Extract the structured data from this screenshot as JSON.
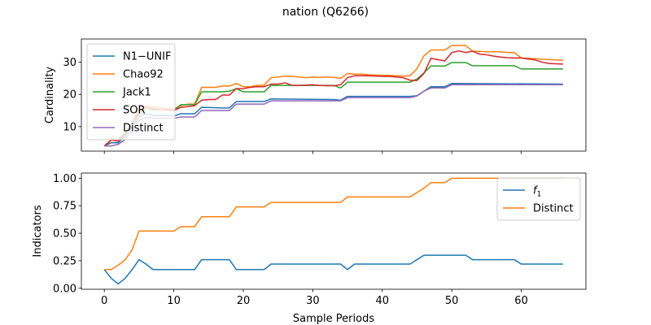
{
  "figure": {
    "title": "nation (Q6266)"
  },
  "chart_data": [
    {
      "type": "line",
      "ylabel": "Cardinality",
      "xlim": [
        -3.3,
        69.3
      ],
      "ylim": [
        2.4,
        37.2
      ],
      "yticks": [
        10,
        20,
        30
      ],
      "xticks": [
        0,
        10,
        20,
        30,
        40,
        50,
        60
      ],
      "show_xtick_labels": false,
      "legend_position": "top-left",
      "series": [
        {
          "name": "N1−UNIF",
          "color": "#1f77b4",
          "x": [
            0,
            1,
            2,
            3,
            4,
            5,
            6,
            7,
            8,
            9,
            10,
            11,
            12,
            13,
            14,
            17,
            18,
            19,
            23,
            24,
            33,
            34,
            35,
            44,
            45,
            46,
            47,
            48,
            49,
            50,
            66
          ],
          "y": [
            4,
            5,
            5,
            7,
            10,
            13,
            14,
            13.5,
            13.5,
            13.5,
            13.3,
            14,
            14,
            14,
            16,
            15.8,
            15.8,
            17.8,
            17.8,
            18.6,
            18.4,
            18.2,
            19.4,
            19.4,
            19.6,
            21,
            22.4,
            22.4,
            22.4,
            23.4,
            23.2
          ]
        },
        {
          "name": "Chao92",
          "color": "#ff7f0e",
          "x": [
            0,
            1,
            2,
            3,
            4,
            5,
            6,
            7,
            8,
            9,
            10,
            11,
            12,
            13,
            14,
            15,
            16,
            17,
            18,
            19,
            20,
            21,
            22,
            23,
            24,
            25,
            26,
            27,
            28,
            29,
            30,
            31,
            32,
            33,
            34,
            35,
            36,
            37,
            38,
            39,
            40,
            41,
            42,
            43,
            44,
            45,
            46,
            47,
            48,
            49,
            50,
            51,
            52,
            53,
            54,
            55,
            56,
            57,
            58,
            59,
            60,
            61,
            62,
            63,
            64,
            65,
            66
          ],
          "y": [
            4,
            6,
            5.5,
            8,
            11,
            16,
            16.5,
            16,
            16,
            15.5,
            15.5,
            16.5,
            17,
            17,
            22.2,
            22.2,
            22.2,
            22.6,
            22.6,
            23.4,
            22.4,
            22.4,
            22.8,
            22.9,
            25.2,
            25.4,
            25.7,
            25.6,
            25.4,
            25.2,
            25.4,
            25.3,
            25.4,
            25.3,
            25,
            26.5,
            26.3,
            26.3,
            26.1,
            26,
            25.9,
            25.9,
            25.8,
            25.7,
            25.8,
            28,
            32,
            33.8,
            33.8,
            33.8,
            35.2,
            35.2,
            35.2,
            33.4,
            33.4,
            33.2,
            33.3,
            33.2,
            33,
            33,
            31.3,
            31.2,
            31.1,
            30.9,
            30.8,
            30.7,
            30.6
          ]
        },
        {
          "name": "Jack1",
          "color": "#2ca02c",
          "x": [
            0,
            1,
            2,
            3,
            4,
            5,
            6,
            7,
            8,
            9,
            10,
            11,
            12,
            13,
            14,
            15,
            16,
            17,
            18,
            19,
            20,
            21,
            22,
            23,
            24,
            33,
            34,
            35,
            44,
            45,
            46,
            47,
            48,
            49,
            50,
            51,
            52,
            53,
            59,
            60,
            66
          ],
          "y": [
            4,
            5.8,
            6,
            8.2,
            11,
            13.9,
            15.8,
            15.2,
            15.2,
            15.2,
            15,
            16.8,
            16.8,
            16.8,
            20.8,
            20.8,
            20.8,
            20.8,
            21,
            21.8,
            20.8,
            20.8,
            20.8,
            20.8,
            22.8,
            22.8,
            22,
            23.8,
            23.8,
            24.8,
            26.7,
            28.8,
            28.8,
            28.8,
            29.9,
            29.9,
            29.9,
            28.9,
            28.9,
            27.9,
            27.9
          ]
        },
        {
          "name": "SOR",
          "color": "#d62728",
          "x": [
            0,
            1,
            2,
            3,
            4,
            5,
            6,
            7,
            8,
            9,
            10,
            11,
            12,
            13,
            14,
            15,
            16,
            17,
            18,
            19,
            20,
            21,
            22,
            23,
            24,
            25,
            26,
            27,
            28,
            29,
            30,
            31,
            32,
            33,
            34,
            35,
            36,
            37,
            38,
            39,
            40,
            41,
            42,
            43,
            44,
            45,
            46,
            47,
            48,
            49,
            50,
            51,
            52,
            53,
            54,
            55,
            56,
            57,
            58,
            59,
            60,
            61,
            62,
            63,
            64,
            65,
            66
          ],
          "y": [
            4,
            5.8,
            5.5,
            7.5,
            10.5,
            15,
            16,
            15.5,
            15.2,
            15.2,
            15,
            16,
            16.2,
            16.5,
            18.2,
            18.4,
            18.4,
            19.8,
            19.8,
            21.8,
            21.8,
            22.2,
            22.4,
            22.4,
            23.2,
            23.2,
            23.6,
            22.8,
            22.8,
            22.9,
            23,
            22.8,
            22.7,
            22.7,
            23,
            25.2,
            25.8,
            25.8,
            25.8,
            25.7,
            25.6,
            25.6,
            25.4,
            25.2,
            24.4,
            24.3,
            26.5,
            31.2,
            30.8,
            30.4,
            33,
            33.5,
            33,
            33.4,
            32.5,
            32.3,
            31.9,
            31.6,
            31.4,
            31.3,
            31.3,
            31,
            30.7,
            30,
            29.6,
            29.5,
            29.4
          ]
        },
        {
          "name": "Distinct",
          "color": "#9467bd",
          "x": [
            0,
            1,
            2,
            3,
            4,
            5,
            6,
            7,
            8,
            9,
            10,
            11,
            12,
            13,
            14,
            15,
            16,
            17,
            18,
            19,
            23,
            24,
            33,
            34,
            35,
            44,
            45,
            46,
            47,
            48,
            49,
            50,
            66
          ],
          "y": [
            4,
            4,
            4.5,
            6,
            9,
            12,
            12.8,
            12.6,
            12.6,
            12.6,
            12.6,
            13,
            13,
            13,
            15,
            15,
            15,
            15,
            15,
            17,
            17,
            18,
            18,
            18,
            19,
            19,
            19.5,
            21,
            22,
            22,
            22,
            23,
            23
          ]
        }
      ]
    },
    {
      "type": "line",
      "ylabel": "Indicators",
      "xlabel": "Sample Periods",
      "xlim": [
        -3.3,
        69.3
      ],
      "ylim": [
        -0.009,
        1.047
      ],
      "yticks": [
        0.0,
        0.25,
        0.5,
        0.75,
        1.0
      ],
      "ytick_labels": [
        "0.00",
        "0.25",
        "0.50",
        "0.75",
        "1.00"
      ],
      "xticks": [
        0,
        10,
        20,
        30,
        40,
        50,
        60
      ],
      "xtick_labels": [
        "0",
        "10",
        "20",
        "30",
        "40",
        "50",
        "60"
      ],
      "legend_position": "top-right",
      "series": [
        {
          "name": "f_1",
          "color": "#1f77b4",
          "x": [
            0,
            1,
            2,
            3,
            4,
            5,
            6,
            7,
            13,
            14,
            18,
            19,
            23,
            24,
            34,
            35,
            36,
            44,
            45,
            46,
            52,
            53,
            59,
            60,
            66
          ],
          "y": [
            0.17,
            0.09,
            0.04,
            0.09,
            0.17,
            0.26,
            0.22,
            0.17,
            0.17,
            0.26,
            0.26,
            0.17,
            0.17,
            0.22,
            0.22,
            0.17,
            0.22,
            0.22,
            0.26,
            0.3,
            0.3,
            0.26,
            0.26,
            0.22,
            0.22
          ]
        },
        {
          "name": "Distinct",
          "color": "#ff7f0e",
          "x": [
            0,
            1,
            2,
            3,
            4,
            5,
            10,
            11,
            13,
            14,
            18,
            19,
            23,
            24,
            34,
            35,
            44,
            45,
            46,
            47,
            48,
            49,
            50,
            66
          ],
          "y": [
            0.17,
            0.17,
            0.21,
            0.26,
            0.35,
            0.52,
            0.52,
            0.56,
            0.56,
            0.65,
            0.65,
            0.74,
            0.74,
            0.78,
            0.78,
            0.83,
            0.83,
            0.87,
            0.91,
            0.96,
            0.96,
            0.96,
            1.0,
            1.0
          ]
        }
      ]
    }
  ]
}
